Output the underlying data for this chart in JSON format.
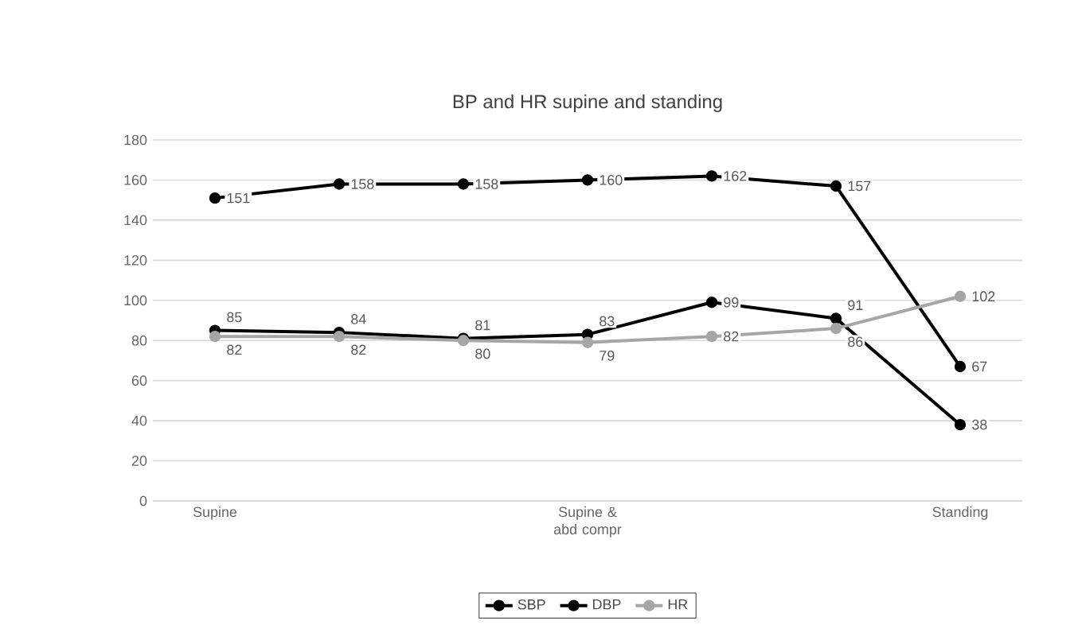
{
  "chart_data": {
    "type": "line",
    "title": "BP and HR  supine and standing",
    "categories": [
      "Supine",
      null,
      null,
      "Supine & abd compr",
      null,
      null,
      "Standing"
    ],
    "series": [
      {
        "name": "SBP",
        "color": "#000000",
        "values": [
          151,
          158,
          158,
          160,
          162,
          157,
          67
        ]
      },
      {
        "name": "DBP",
        "color": "#000000",
        "values": [
          85,
          84,
          81,
          83,
          99,
          91,
          38
        ]
      },
      {
        "name": "HR",
        "color": "#a6a6a6",
        "values": [
          82,
          82,
          80,
          79,
          82,
          86,
          102
        ]
      }
    ],
    "ylim": [
      0,
      180
    ],
    "yticks": [
      0,
      20,
      40,
      60,
      80,
      100,
      120,
      140,
      160,
      180
    ],
    "grid": "y",
    "legend": "bottom",
    "marker": "circle",
    "data_labels": true
  }
}
